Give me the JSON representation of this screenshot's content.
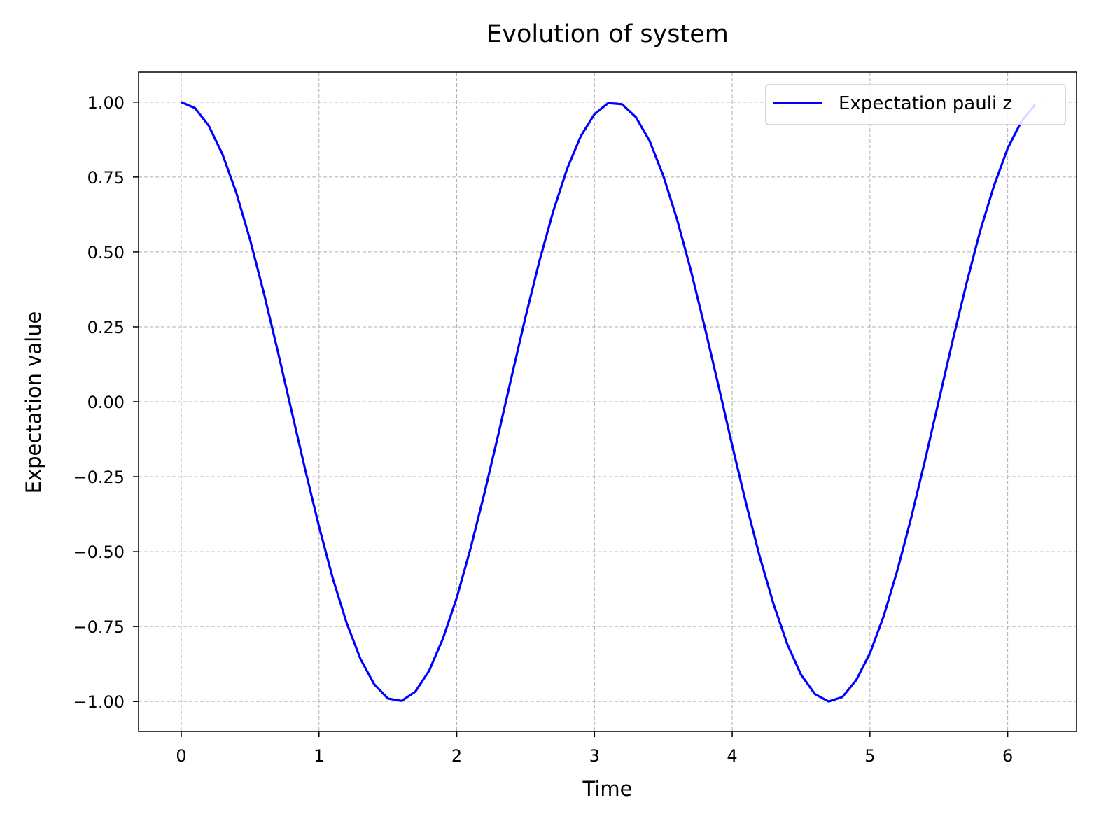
{
  "chart_data": {
    "type": "line",
    "title": "Evolution of system",
    "xlabel": "Time",
    "ylabel": "Expectation value",
    "xlim": [
      -0.31,
      6.5
    ],
    "ylim": [
      -1.1,
      1.1
    ],
    "xticks": [
      0,
      1,
      2,
      3,
      4,
      5,
      6
    ],
    "xtick_labels": [
      "0",
      "1",
      "2",
      "3",
      "4",
      "5",
      "6"
    ],
    "yticks": [
      1.0,
      0.75,
      0.5,
      0.25,
      0.0,
      -0.25,
      -0.5,
      -0.75,
      -1.0
    ],
    "ytick_labels": [
      "1.00",
      "0.75",
      "0.50",
      "0.25",
      "0.00",
      "−0.25",
      "−0.50",
      "−0.75",
      "−1.00"
    ],
    "grid": true,
    "legend_position": "top-right",
    "series": [
      {
        "name": "Expectation pauli z",
        "color": "#0000ff",
        "x": [
          0.0,
          0.1,
          0.2,
          0.3,
          0.4,
          0.5,
          0.6,
          0.7,
          0.8,
          0.9,
          1.0,
          1.1,
          1.2,
          1.3,
          1.4,
          1.5,
          1.6,
          1.7,
          1.8,
          1.9,
          2.0,
          2.1,
          2.2,
          2.3,
          2.4,
          2.5,
          2.6,
          2.7,
          2.8,
          2.9,
          3.0,
          3.1,
          3.2,
          3.3,
          3.4,
          3.5,
          3.6,
          3.7,
          3.8,
          3.9,
          4.0,
          4.1,
          4.2,
          4.3,
          4.4,
          4.5,
          4.6,
          4.7,
          4.8,
          4.9,
          5.0,
          5.1,
          5.2,
          5.3,
          5.4,
          5.5,
          5.6,
          5.7,
          5.8,
          5.9,
          6.0,
          6.1,
          6.2
        ],
        "y": [
          1.0,
          0.98,
          0.921,
          0.825,
          0.697,
          0.54,
          0.362,
          0.17,
          -0.029,
          -0.227,
          -0.416,
          -0.589,
          -0.737,
          -0.857,
          -0.942,
          -0.99,
          -0.998,
          -0.967,
          -0.897,
          -0.79,
          -0.654,
          -0.49,
          -0.307,
          -0.113,
          0.087,
          0.284,
          0.469,
          0.635,
          0.776,
          0.886,
          0.96,
          0.997,
          0.993,
          0.95,
          0.871,
          0.754,
          0.608,
          0.438,
          0.25,
          0.054,
          -0.146,
          -0.338,
          -0.517,
          -0.675,
          -0.809,
          -0.911,
          -0.975,
          -1.0,
          -0.985,
          -0.929,
          -0.839,
          -0.715,
          -0.561,
          -0.386,
          -0.195,
          0.004,
          0.203,
          0.393,
          0.57,
          0.72,
          0.846,
          0.936,
          0.992
        ]
      }
    ]
  }
}
